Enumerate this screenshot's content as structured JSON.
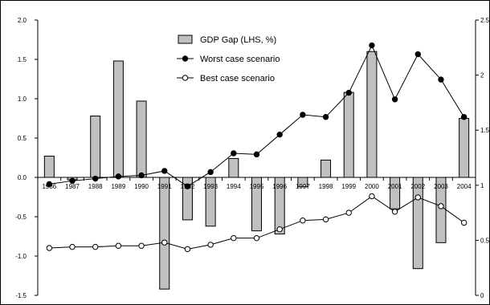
{
  "chart_data": {
    "type": "bar",
    "title": "",
    "xlabel": "",
    "categories": [
      "1986",
      "1987",
      "1988",
      "1989",
      "1990",
      "1991",
      "1992",
      "1993",
      "1994",
      "1995",
      "1996",
      "1997",
      "1998",
      "1999",
      "2000",
      "2001",
      "2002",
      "2003",
      "2004"
    ],
    "y_left": {
      "ticks": [
        "2.0",
        "1.5",
        "1.0",
        "0.5",
        "0.0",
        "-0.5",
        "-1.0",
        "-1.5"
      ],
      "ylim": [
        -1.5,
        2.0
      ]
    },
    "y_right": {
      "ticks": [
        "2.5",
        "2",
        "1.5",
        "1",
        "0.5",
        "0"
      ],
      "ylim": [
        0,
        2.5
      ]
    },
    "series": [
      {
        "name": "GDP Gap (LHS, %)",
        "kind": "bar",
        "axis": "left",
        "color": "#c0c0c0",
        "values": [
          0.27,
          -0.03,
          0.78,
          1.48,
          0.97,
          -1.42,
          -0.54,
          -0.62,
          0.24,
          -0.68,
          -0.72,
          -0.12,
          0.22,
          1.08,
          1.6,
          -0.4,
          -1.16,
          -0.83,
          0.75
        ]
      },
      {
        "name": "Worst case scenario",
        "kind": "line",
        "axis": "right",
        "marker": "filled-circle",
        "color": "#000000",
        "values": [
          1.01,
          1.04,
          1.06,
          1.08,
          1.09,
          1.13,
          0.99,
          1.12,
          1.29,
          1.28,
          1.46,
          1.64,
          1.62,
          1.84,
          2.27,
          1.78,
          2.19,
          1.96,
          1.62
        ]
      },
      {
        "name": "Best case scenario",
        "kind": "line",
        "axis": "right",
        "marker": "open-circle",
        "color": "#000000",
        "values": [
          0.43,
          0.44,
          0.44,
          0.45,
          0.45,
          0.48,
          0.42,
          0.46,
          0.52,
          0.52,
          0.6,
          0.68,
          0.69,
          0.75,
          0.9,
          0.76,
          0.89,
          0.81,
          0.66
        ]
      }
    ],
    "legend_position": "top-center",
    "grid": false
  }
}
